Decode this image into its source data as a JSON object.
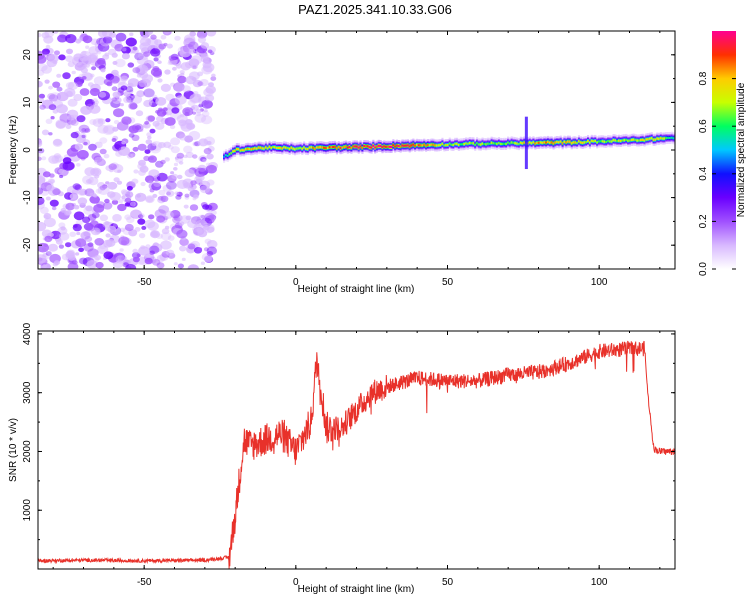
{
  "title": "PAZ1.2025.341.10.33.G06",
  "chart_data": [
    {
      "type": "heatmap",
      "title": "PAZ1.2025.341.10.33.G06",
      "xlabel": "Height of straight line (km)",
      "ylabel": "Frequency (Hz)",
      "xlim": [
        -85,
        125
      ],
      "ylim": [
        -25,
        25
      ],
      "xticks": [
        -50,
        0,
        50,
        100
      ],
      "yticks": [
        -20,
        -10,
        0,
        10,
        20
      ],
      "colorbar": {
        "label": "Normalized spectral amplitude",
        "ticks": [
          0.0,
          0.2,
          0.4,
          0.6,
          0.8
        ],
        "colors": [
          "#ffffff",
          "#d8b8ff",
          "#a050ff",
          "#6a00ff",
          "#1010ff",
          "#00c8ff",
          "#00ff60",
          "#c8ff00",
          "#ffcc00",
          "#ff3000",
          "#ff0090"
        ]
      },
      "noise_region_x": [
        -85,
        -27
      ],
      "ridge": {
        "x": [
          -24,
          -20,
          -10,
          0,
          10,
          20,
          30,
          40,
          50,
          60,
          70,
          80,
          90,
          100,
          110,
          120,
          125
        ],
        "frequency": [
          -1.5,
          0,
          0.5,
          0.3,
          0.5,
          0.6,
          0.8,
          1.0,
          1.2,
          1.3,
          1.4,
          1.5,
          1.6,
          1.8,
          2.0,
          2.4,
          2.6
        ],
        "amplitude": [
          0.5,
          0.8,
          0.8,
          0.75,
          0.9,
          1.0,
          1.0,
          0.9,
          0.7,
          0.7,
          0.7,
          0.85,
          0.8,
          0.7,
          0.75,
          0.8,
          0.5
        ]
      },
      "spike_x": 76
    },
    {
      "type": "line",
      "xlabel": "Height of straight line (km)",
      "ylabel": "SNR (10 * v/v)",
      "xlim": [
        -85,
        125
      ],
      "ylim": [
        0,
        4050
      ],
      "xticks": [
        -50,
        0,
        50,
        100
      ],
      "yticks": [
        1000,
        2000,
        3000,
        4000
      ],
      "color": "#e8312a",
      "series": [
        {
          "name": "SNR",
          "x": [
            -85,
            -70,
            -50,
            -30,
            -22,
            -20,
            -18,
            -17,
            -15,
            -10,
            -5,
            0,
            5,
            7,
            10,
            15,
            20,
            25,
            30,
            40,
            50,
            60,
            70,
            80,
            90,
            100,
            110,
            115,
            116,
            118,
            120,
            125
          ],
          "y": [
            140,
            150,
            140,
            150,
            200,
            900,
            1800,
            2200,
            2100,
            2200,
            2300,
            2000,
            2500,
            3600,
            2400,
            2400,
            2700,
            3000,
            3100,
            3250,
            3200,
            3200,
            3300,
            3350,
            3500,
            3700,
            3750,
            3750,
            3000,
            2050,
            2000,
            2000
          ]
        }
      ]
    }
  ]
}
